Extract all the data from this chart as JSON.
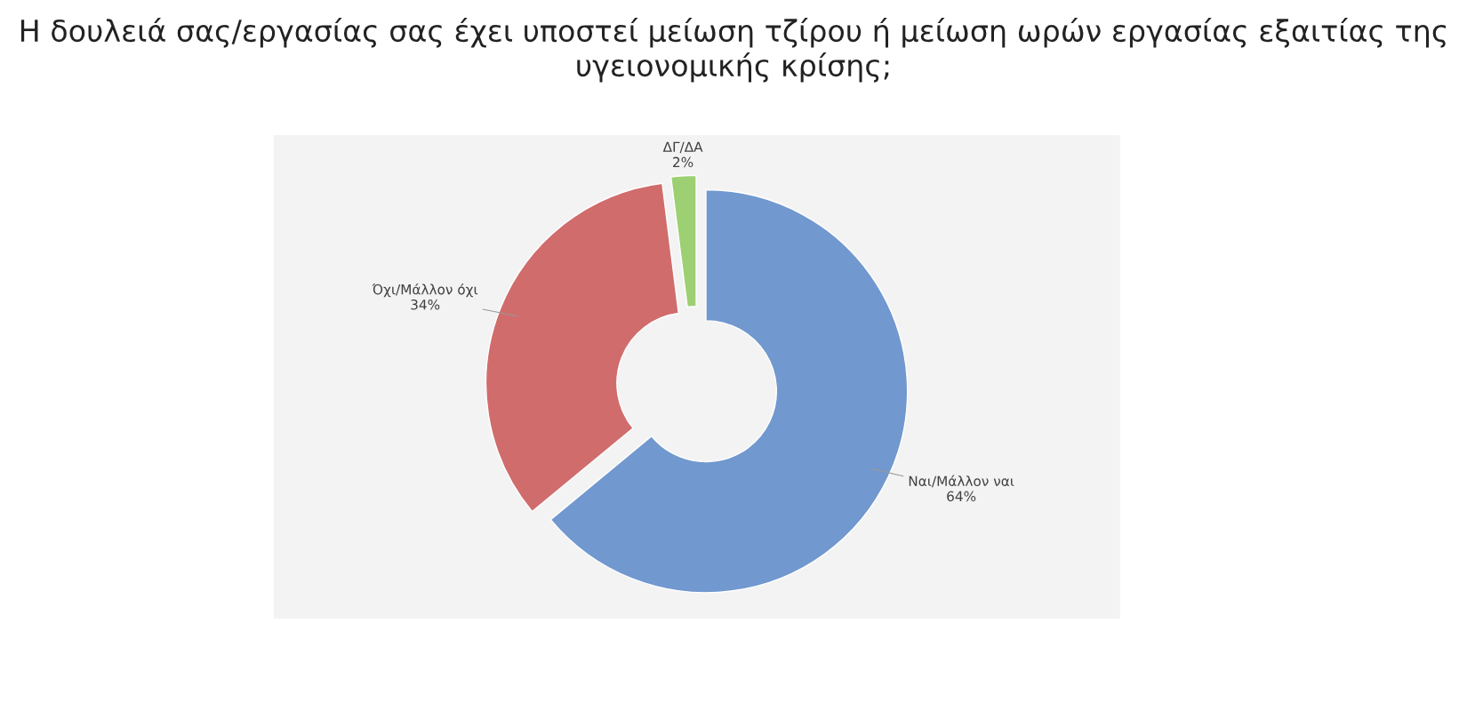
{
  "chart_data": {
    "type": "donut",
    "title": "Η δουλειά σας/εργασίας σας έχει υποστεί μείωση τζίρου ή μείωση ωρών εργασίας εξαιτίας της υγειονομικής κρίσης;",
    "categories": [
      "Ναι/Μάλλον ναι",
      "Όχι/Μάλλον όχι",
      "ΔΓ/ΔΑ"
    ],
    "values": [
      64,
      34,
      2
    ],
    "value_labels": [
      "64%",
      "34%",
      "2%"
    ],
    "colors": [
      "#7198cf",
      "#d16c6c",
      "#9dd072"
    ],
    "legend": false
  }
}
